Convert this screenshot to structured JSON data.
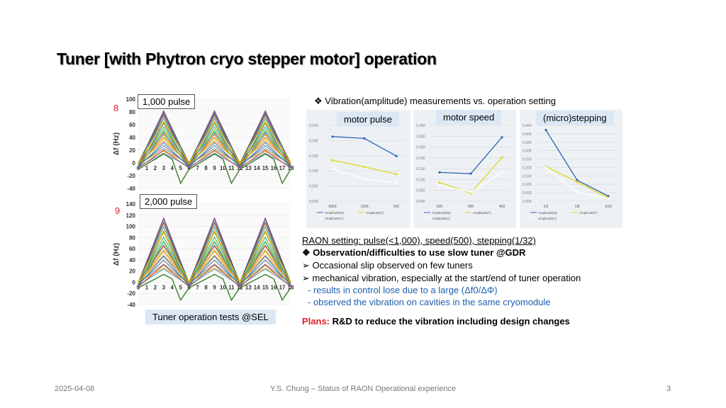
{
  "title": "Tuner [with Phytron cryo stepper motor] operation",
  "left_plots": {
    "top": {
      "index_label": "8",
      "callout": "1,000 pulse",
      "y_axis_label": "Δf (Hz)",
      "y_ticks": [
        "100",
        "80",
        "60",
        "40",
        "20",
        "0",
        "-20",
        "-40"
      ],
      "x_ticks": [
        "0",
        "1",
        "2",
        "3",
        "4",
        "5",
        "6",
        "7",
        "8",
        "9",
        "10",
        "11",
        "12",
        "13",
        "14",
        "15",
        "16",
        "17",
        "18"
      ]
    },
    "bottom": {
      "index_label": "9",
      "callout": "2,000 pulse",
      "y_axis_label": "Δf (Hz)",
      "y_ticks": [
        "140",
        "120",
        "100",
        "80",
        "60",
        "40",
        "20",
        "0",
        "-20",
        "-40"
      ],
      "x_ticks": [
        "0",
        "1",
        "2",
        "3",
        "4",
        "5",
        "6",
        "7",
        "8",
        "9",
        "10",
        "11",
        "12",
        "13",
        "14",
        "15",
        "16",
        "17",
        "18"
      ]
    },
    "caption": "Tuner operation tests @SEL"
  },
  "vibration": {
    "heading_bullet": "❖",
    "heading": "Vibration(amplitude) measurements vs. operation setting",
    "panels": [
      {
        "label": "motor pulse",
        "x_ticks": [
          "5000",
          "1000",
          "500"
        ],
        "y_ticks": [
          "0.250",
          "0.200",
          "0.150",
          "0.100",
          "0.050",
          "0.000"
        ],
        "legend": [
          "Amplitude(M)",
          "Amplitude(T)",
          "Amplitude(C)"
        ]
      },
      {
        "label": "motor speed",
        "x_ticks": [
          "600",
          "500",
          "400"
        ],
        "y_ticks": [
          "0.350",
          "0.300",
          "0.250",
          "0.200",
          "0.150",
          "0.100",
          "0.050",
          "0.000"
        ],
        "legend": [
          "Amplitude(M)",
          "Amplitude(T)",
          "Amplitude(C)"
        ]
      },
      {
        "label": "(micro)stepping",
        "x_ticks": [
          "1/2",
          "1/8",
          "1/32"
        ],
        "y_ticks": [
          "0.450",
          "0.400",
          "0.350",
          "0.300",
          "0.250",
          "0.200",
          "0.150",
          "0.100",
          "0.050",
          "0.000"
        ],
        "legend": [
          "Amplitude(M)",
          "Amplitude(T)",
          "Amplitude(C)"
        ]
      }
    ]
  },
  "chart_data": [
    {
      "type": "line",
      "x": [
        "5000",
        "1000",
        "500"
      ],
      "ylim": [
        0,
        0.25
      ],
      "series": [
        {
          "name": "Amplitude(M)",
          "color": "#2e63b8",
          "values": [
            0.213,
            0.207,
            0.149
          ]
        },
        {
          "name": "Amplitude(T)",
          "color": "#e0d820",
          "values": [
            0.135,
            0.113,
            0.089
          ]
        },
        {
          "name": "Amplitude(C)",
          "color": "#ffffff",
          "values": [
            0.106,
            0.074,
            0.061
          ]
        }
      ]
    },
    {
      "type": "line",
      "x": [
        "600",
        "500",
        "400"
      ],
      "ylim": [
        0,
        0.35
      ],
      "series": [
        {
          "name": "Amplitude(M)",
          "color": "#2e63b8",
          "values": [
            0.133,
            0.127,
            0.295
          ]
        },
        {
          "name": "Amplitude(T)",
          "color": "#e0d820",
          "values": [
            0.086,
            0.037,
            0.202
          ]
        },
        {
          "name": "Amplitude(C)",
          "color": "#ffffff",
          "values": [
            0.073,
            0.042,
            0.133
          ]
        }
      ]
    },
    {
      "type": "line",
      "x": [
        "1/2",
        "1/8",
        "1/32"
      ],
      "ylim": [
        0,
        0.45
      ],
      "series": [
        {
          "name": "Amplitude(M)",
          "color": "#2e63b8",
          "values": [
            0.422,
            0.125,
            0.03
          ]
        },
        {
          "name": "Amplitude(T)",
          "color": "#e0d820",
          "values": [
            0.205,
            0.114,
            0.02
          ]
        },
        {
          "name": "Amplitude(C)",
          "color": "#ffffff",
          "values": [
            0.2,
            0.054,
            0.015
          ]
        }
      ]
    }
  ],
  "notes": {
    "raon_setting": "RAON setting: pulse(<1,000), speed(500), stepping(1/32)",
    "obs_bullet": "❖",
    "observation": "Observation/difficulties to use slow tuner @GDR",
    "arrow": "➢",
    "slip": "Occasional slip observed on few tuners",
    "mech": "mechanical vibration, especially at the start/end of tuner operation",
    "result1": "- results in control lose due to a large (Δf0/ΔΦ)",
    "result2": "- observed the vibration on cavities in the same cryomodule",
    "plans_label": "Plans:",
    "plans_text": "R&D to reduce the vibration including design changes"
  },
  "footer": {
    "date": "2025-04-08",
    "center": "Y.S. Chung – Status of RAON Operational experience",
    "page": "3"
  },
  "colors": {
    "red": "#e0202a",
    "blue": "#1f5fb0",
    "label_bg": "#dbe8f4"
  }
}
